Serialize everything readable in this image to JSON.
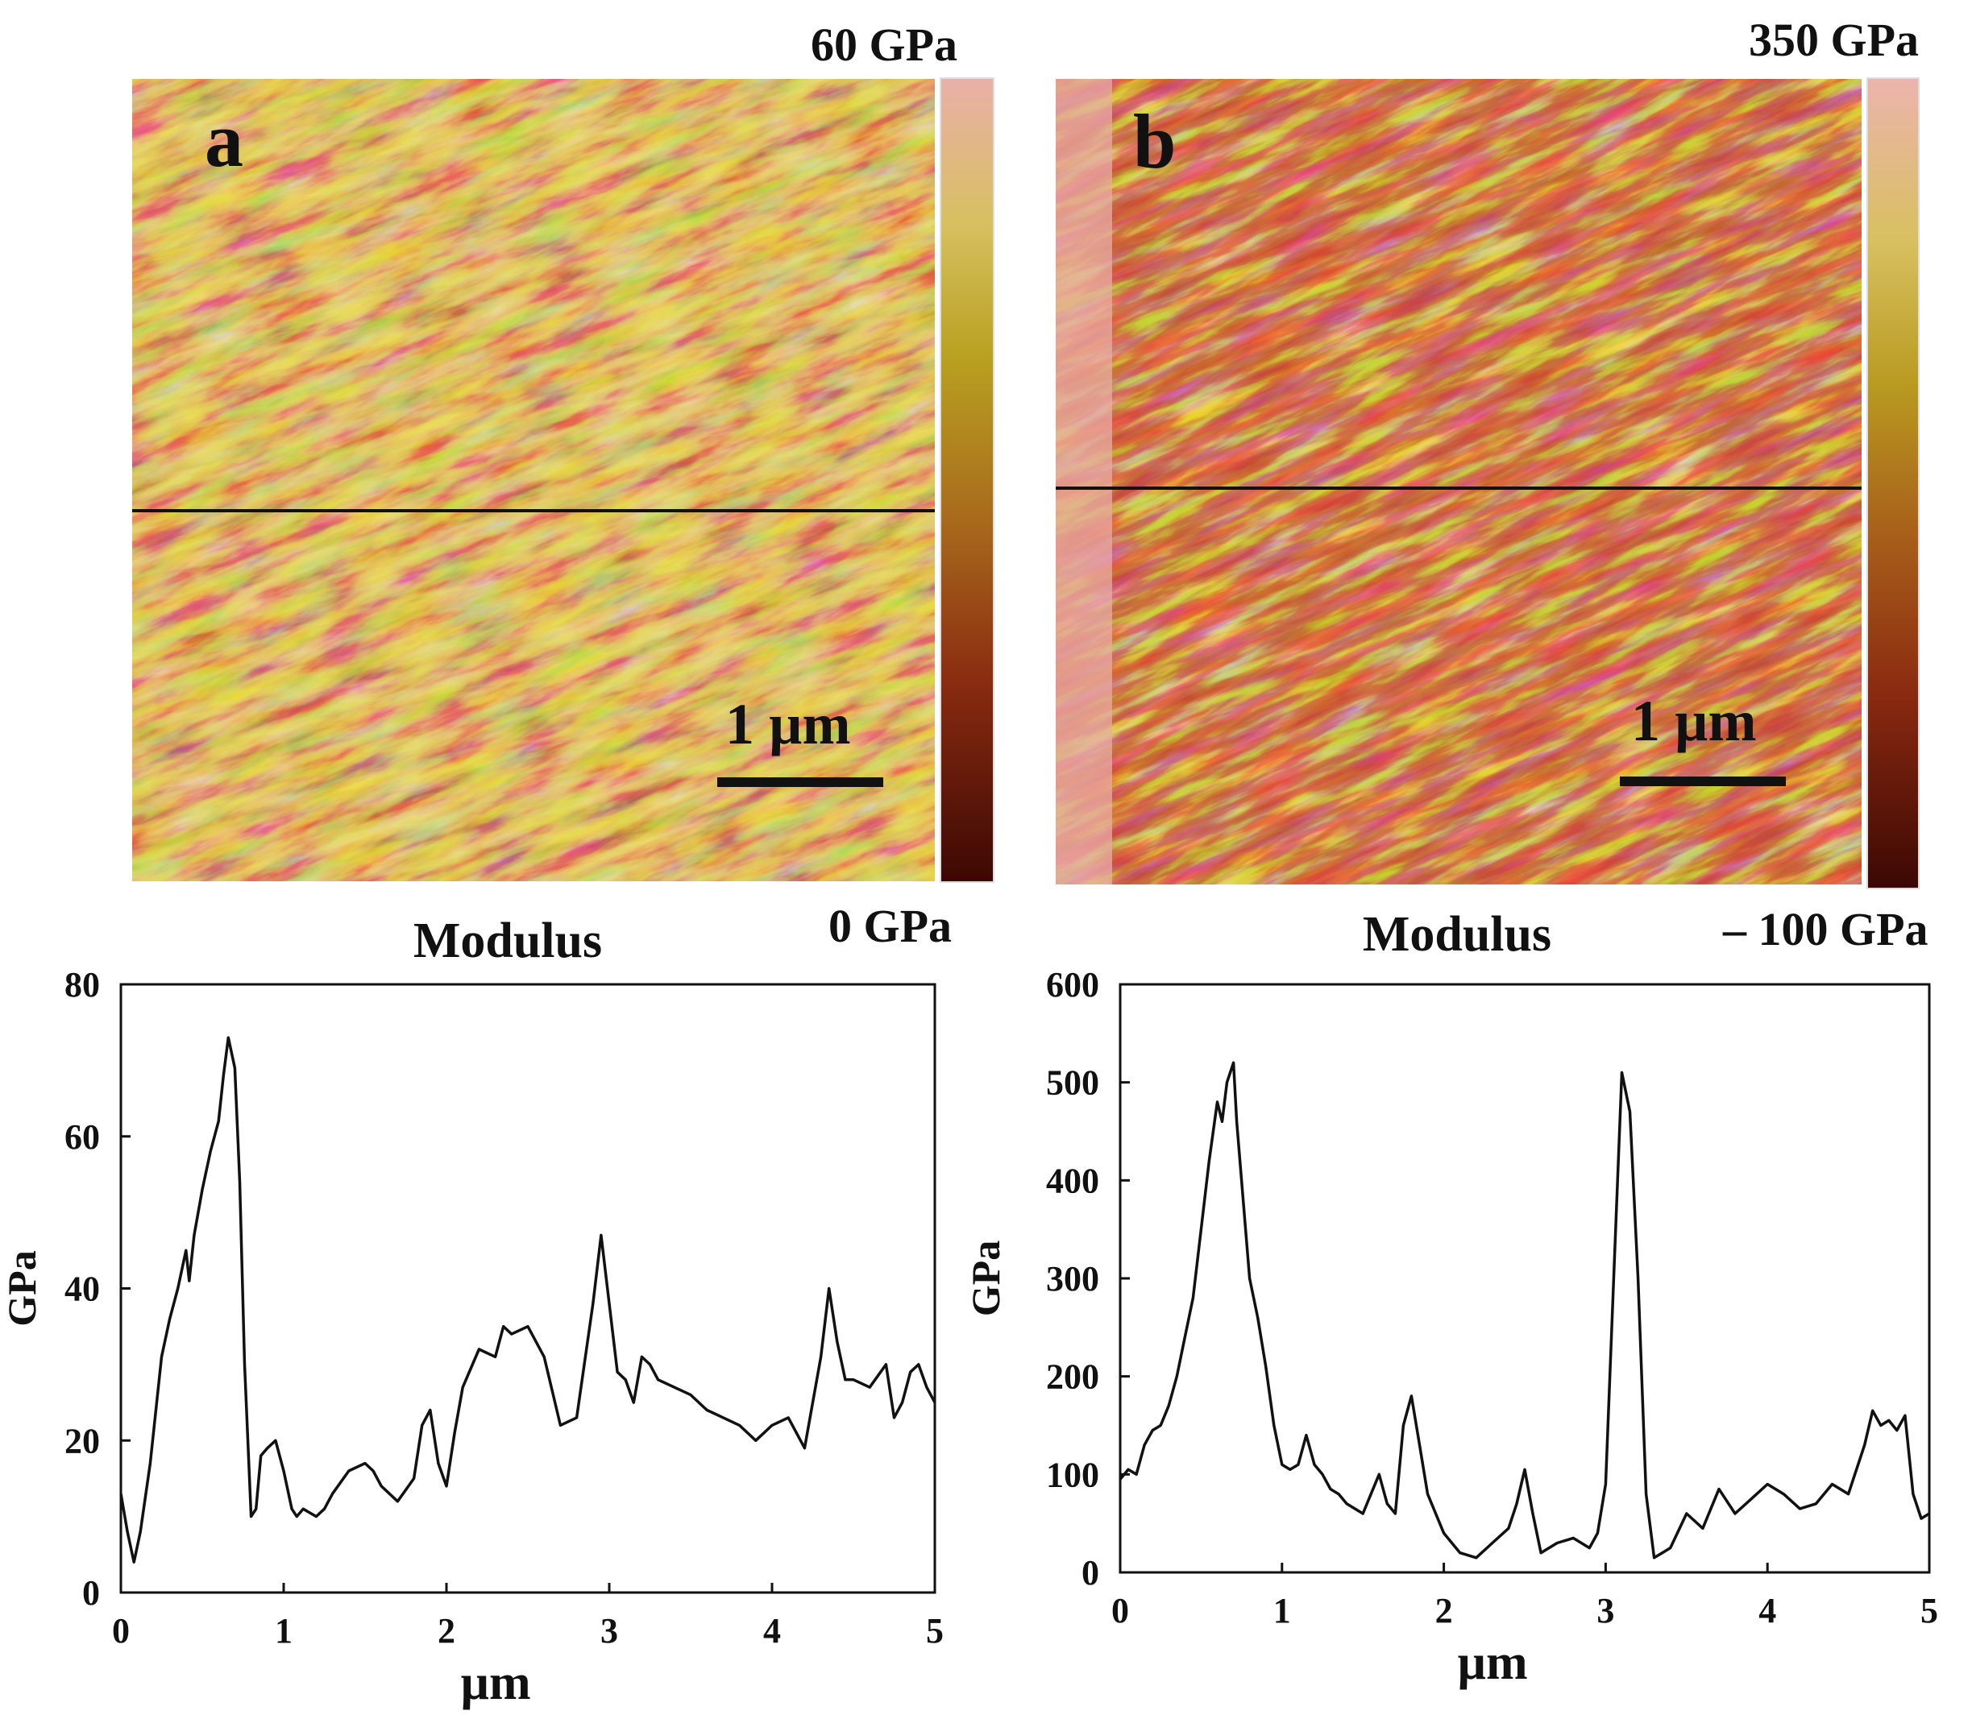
{
  "colors": {
    "map_dark": "#4a0a04",
    "map_mid": "#a83410",
    "map_gold": "#d2b43a",
    "map_pale": "#e8a8a0",
    "line": "#111111"
  },
  "panel_a": {
    "letter": "a",
    "cbar_max": "60 GPa",
    "cbar_min": "0 GPa",
    "scale_label": "1 µm"
  },
  "panel_b": {
    "letter": "b",
    "cbar_max": "350 GPa",
    "cbar_min": "– 100 GPa",
    "scale_label": "1 µm"
  },
  "chart_data": [
    {
      "type": "line",
      "title": "Modulus",
      "xlabel": "µm",
      "ylabel": "GPa",
      "xlim": [
        0,
        5
      ],
      "ylim": [
        0,
        80
      ],
      "xticks": [
        "0",
        "1",
        "2",
        "3",
        "4",
        "5"
      ],
      "yticks": [
        "0",
        "20",
        "40",
        "60",
        "80"
      ],
      "x": [
        0,
        0.04,
        0.08,
        0.12,
        0.18,
        0.25,
        0.3,
        0.35,
        0.4,
        0.42,
        0.45,
        0.5,
        0.55,
        0.6,
        0.63,
        0.66,
        0.7,
        0.73,
        0.76,
        0.8,
        0.83,
        0.86,
        0.9,
        0.95,
        1.0,
        1.05,
        1.08,
        1.12,
        1.2,
        1.25,
        1.3,
        1.4,
        1.5,
        1.55,
        1.6,
        1.7,
        1.8,
        1.85,
        1.9,
        1.95,
        2.0,
        2.05,
        2.1,
        2.2,
        2.3,
        2.35,
        2.4,
        2.5,
        2.6,
        2.7,
        2.8,
        2.9,
        2.95,
        3.0,
        3.05,
        3.1,
        3.15,
        3.2,
        3.25,
        3.3,
        3.4,
        3.5,
        3.6,
        3.7,
        3.8,
        3.9,
        4.0,
        4.1,
        4.2,
        4.25,
        4.3,
        4.35,
        4.4,
        4.45,
        4.5,
        4.6,
        4.7,
        4.75,
        4.8,
        4.85,
        4.9,
        4.95,
        5.0
      ],
      "y": [
        13,
        8,
        4,
        8,
        17,
        31,
        36,
        40,
        45,
        41,
        47,
        53,
        58,
        62,
        68,
        73,
        69,
        54,
        30,
        10,
        11,
        18,
        19,
        20,
        16,
        11,
        10,
        11,
        10,
        11,
        13,
        16,
        17,
        16,
        14,
        12,
        15,
        22,
        24,
        17,
        14,
        21,
        27,
        32,
        31,
        35,
        34,
        35,
        31,
        22,
        23,
        38,
        47,
        38,
        29,
        28,
        25,
        31,
        30,
        28,
        27,
        26,
        24,
        23,
        22,
        20,
        22,
        23,
        19,
        25,
        31,
        40,
        33,
        28,
        28,
        27,
        30,
        23,
        25,
        29,
        30,
        27,
        25
      ]
    },
    {
      "type": "line",
      "title": "Modulus",
      "xlabel": "µm",
      "ylabel": "GPa",
      "xlim": [
        0,
        5
      ],
      "ylim": [
        0,
        600
      ],
      "xticks": [
        "0",
        "1",
        "2",
        "3",
        "4",
        "5"
      ],
      "yticks": [
        "0",
        "100",
        "200",
        "300",
        "400",
        "500",
        "600"
      ],
      "x": [
        0,
        0.05,
        0.1,
        0.15,
        0.2,
        0.25,
        0.3,
        0.35,
        0.4,
        0.45,
        0.5,
        0.55,
        0.6,
        0.63,
        0.66,
        0.7,
        0.72,
        0.75,
        0.8,
        0.85,
        0.9,
        0.95,
        1.0,
        1.05,
        1.1,
        1.15,
        1.2,
        1.25,
        1.3,
        1.35,
        1.4,
        1.5,
        1.55,
        1.6,
        1.65,
        1.7,
        1.75,
        1.8,
        1.85,
        1.9,
        2.0,
        2.1,
        2.2,
        2.3,
        2.4,
        2.45,
        2.5,
        2.55,
        2.6,
        2.7,
        2.8,
        2.9,
        2.95,
        3.0,
        3.05,
        3.1,
        3.15,
        3.2,
        3.25,
        3.3,
        3.35,
        3.4,
        3.5,
        3.6,
        3.7,
        3.8,
        3.9,
        4.0,
        4.1,
        4.2,
        4.3,
        4.4,
        4.5,
        4.6,
        4.65,
        4.7,
        4.75,
        4.8,
        4.85,
        4.9,
        4.95,
        5.0
      ],
      "y": [
        95,
        105,
        100,
        130,
        145,
        150,
        170,
        200,
        240,
        280,
        350,
        420,
        480,
        460,
        500,
        520,
        460,
        400,
        300,
        260,
        210,
        150,
        110,
        105,
        110,
        140,
        110,
        100,
        85,
        80,
        70,
        60,
        80,
        100,
        70,
        60,
        150,
        180,
        130,
        80,
        40,
        20,
        15,
        30,
        45,
        70,
        105,
        60,
        20,
        30,
        35,
        25,
        40,
        90,
        300,
        510,
        470,
        300,
        80,
        15,
        20,
        25,
        60,
        45,
        85,
        60,
        75,
        90,
        80,
        65,
        70,
        90,
        80,
        130,
        165,
        150,
        155,
        145,
        160,
        80,
        55,
        60
      ]
    }
  ]
}
